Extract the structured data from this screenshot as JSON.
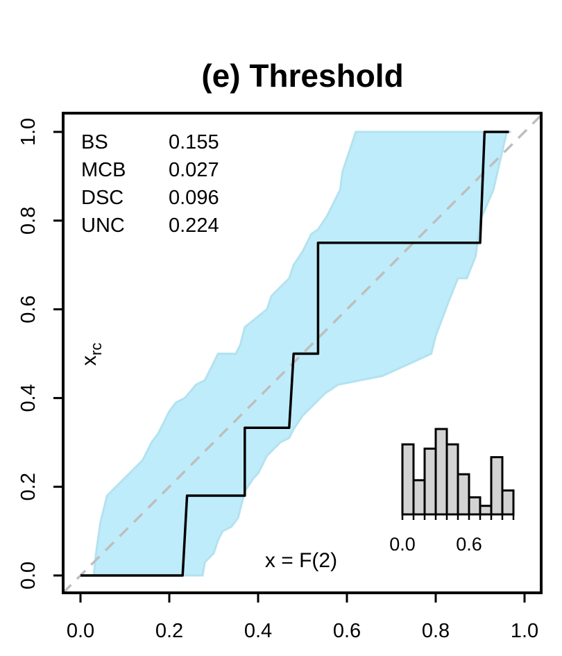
{
  "chart_data": {
    "type": "line",
    "title": "(e) Threshold",
    "xlabel": "",
    "ylabel": "",
    "xlim": [
      -0.04,
      1.04
    ],
    "ylim": [
      -0.04,
      1.04
    ],
    "x_ticks": [
      "0.0",
      "0.2",
      "0.4",
      "0.6",
      "0.8",
      "1.0"
    ],
    "y_ticks": [
      "0.0",
      "0.2",
      "0.4",
      "0.6",
      "0.8",
      "1.0"
    ],
    "grid": false,
    "stats": [
      {
        "label": "BS",
        "value": "0.155"
      },
      {
        "label": "MCB",
        "value": "0.027"
      },
      {
        "label": "DSC",
        "value": "0.096"
      },
      {
        "label": "UNC",
        "value": "0.224"
      }
    ],
    "annotations": {
      "y_annotation_main": "x",
      "y_annotation_sub": "rc",
      "x_annotation": "x = F(2)"
    },
    "diagonal": {
      "x": [
        -0.04,
        1.04
      ],
      "y": [
        -0.04,
        1.04
      ],
      "color": "#bebebe",
      "dash": true
    },
    "band_color": "#bfecfa",
    "band_upper": [
      [
        0.03,
        0.0
      ],
      [
        0.035,
        0.05
      ],
      [
        0.045,
        0.12
      ],
      [
        0.06,
        0.18
      ],
      [
        0.08,
        0.2
      ],
      [
        0.14,
        0.26
      ],
      [
        0.16,
        0.3
      ],
      [
        0.175,
        0.32
      ],
      [
        0.19,
        0.35
      ],
      [
        0.2,
        0.37
      ],
      [
        0.215,
        0.39
      ],
      [
        0.235,
        0.4
      ],
      [
        0.26,
        0.43
      ],
      [
        0.28,
        0.44
      ],
      [
        0.31,
        0.5
      ],
      [
        0.35,
        0.5
      ],
      [
        0.36,
        0.52
      ],
      [
        0.37,
        0.56
      ],
      [
        0.395,
        0.58
      ],
      [
        0.42,
        0.6
      ],
      [
        0.43,
        0.63
      ],
      [
        0.45,
        0.65
      ],
      [
        0.47,
        0.67
      ],
      [
        0.48,
        0.7
      ],
      [
        0.5,
        0.73
      ],
      [
        0.52,
        0.77
      ],
      [
        0.535,
        0.78
      ],
      [
        0.555,
        0.81
      ],
      [
        0.585,
        0.87
      ],
      [
        0.59,
        0.91
      ],
      [
        0.62,
        1.0
      ],
      [
        0.97,
        1.0
      ]
    ],
    "band_lower": [
      [
        0.96,
        1.0
      ],
      [
        0.93,
        0.87
      ],
      [
        0.9,
        0.8
      ],
      [
        0.89,
        0.72
      ],
      [
        0.87,
        0.67
      ],
      [
        0.85,
        0.67
      ],
      [
        0.83,
        0.62
      ],
      [
        0.8,
        0.54
      ],
      [
        0.79,
        0.5
      ],
      [
        0.68,
        0.45
      ],
      [
        0.63,
        0.44
      ],
      [
        0.58,
        0.43
      ],
      [
        0.55,
        0.41
      ],
      [
        0.53,
        0.39
      ],
      [
        0.5,
        0.36
      ],
      [
        0.48,
        0.33
      ],
      [
        0.47,
        0.31
      ],
      [
        0.45,
        0.3
      ],
      [
        0.43,
        0.28
      ],
      [
        0.42,
        0.27
      ],
      [
        0.4,
        0.23
      ],
      [
        0.39,
        0.22
      ],
      [
        0.37,
        0.19
      ],
      [
        0.355,
        0.13
      ],
      [
        0.34,
        0.11
      ],
      [
        0.32,
        0.1
      ],
      [
        0.31,
        0.08
      ],
      [
        0.3,
        0.05
      ],
      [
        0.28,
        0.03
      ],
      [
        0.275,
        0.0
      ],
      [
        0.03,
        0.0
      ]
    ],
    "series": [
      {
        "color": "#000000",
        "x": [
          0.0,
          0.23,
          0.24,
          0.37,
          0.37,
          0.47,
          0.48,
          0.535,
          0.535,
          0.9,
          0.91,
          0.965
        ],
        "y": [
          0.0,
          0.0,
          0.18,
          0.18,
          0.333,
          0.333,
          0.5,
          0.5,
          0.75,
          0.75,
          1.0,
          1.0
        ]
      }
    ],
    "inset_histogram": {
      "type": "bar",
      "bin_edges": [
        0.0,
        0.1,
        0.2,
        0.3,
        0.4,
        0.5,
        0.6,
        0.7,
        0.8,
        0.9,
        1.0
      ],
      "counts": [
        0.82,
        0.4,
        0.77,
        1.0,
        0.82,
        0.47,
        0.2,
        0.1,
        0.67,
        0.28
      ],
      "x_ticks": [
        "0.0",
        "0.6"
      ],
      "fill": "#d3d3d3"
    }
  }
}
